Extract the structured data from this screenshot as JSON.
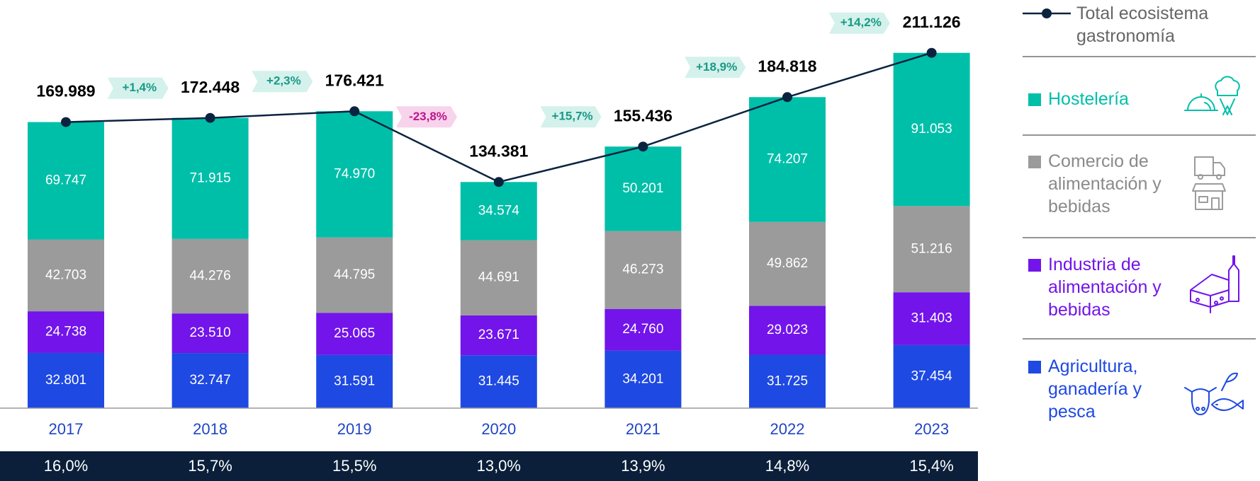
{
  "chart_data": {
    "type": "bar",
    "stacked": true,
    "categories": [
      "2017",
      "2018",
      "2019",
      "2020",
      "2021",
      "2022",
      "2023"
    ],
    "series": [
      {
        "name": "Agricultura, ganadería y pesca",
        "color": "#1e49e2",
        "values": [
          32801,
          32747,
          31591,
          31445,
          34201,
          31725,
          37454
        ],
        "value_labels": [
          "32.801",
          "32.747",
          "31.591",
          "31.445",
          "34.201",
          "31.725",
          "37.454"
        ]
      },
      {
        "name": "Industria de alimentación y bebidas",
        "color": "#7214ea",
        "values": [
          24738,
          23510,
          25065,
          23671,
          24760,
          29023,
          31403
        ],
        "value_labels": [
          "24.738",
          "23.510",
          "25.065",
          "23.671",
          "24.760",
          "29.023",
          "31.403"
        ]
      },
      {
        "name": "Comercio de alimentación y bebidas",
        "color": "#9b9b9b",
        "values": [
          42703,
          44276,
          44795,
          44691,
          46273,
          49862,
          51216
        ],
        "value_labels": [
          "42.703",
          "44.276",
          "44.795",
          "44.691",
          "46.273",
          "49.862",
          "51.216"
        ]
      },
      {
        "name": "Hostelería",
        "color": "#00bfa9",
        "values": [
          69747,
          71915,
          74970,
          34574,
          50201,
          74207,
          91053
        ],
        "value_labels": [
          "69.747",
          "71.915",
          "74.970",
          "34.574",
          "50.201",
          "74.207",
          "91.053"
        ]
      }
    ],
    "line": {
      "name": "Total ecosistema gastronomía",
      "color": "#0c2340",
      "values": [
        169989,
        172448,
        176421,
        134381,
        155436,
        184818,
        211126
      ],
      "value_labels": [
        "169.989",
        "172.448",
        "176.421",
        "134.381",
        "155.436",
        "184.818",
        "211.126"
      ]
    },
    "growth": {
      "values": [
        1.4,
        2.3,
        -23.8,
        15.7,
        18.9,
        14.2
      ],
      "value_labels": [
        "+1,4%",
        "+2,3%",
        "-23,8%",
        "+15,7%",
        "+18,9%",
        "+14,2%"
      ]
    },
    "share": {
      "values": [
        16.0,
        15.7,
        15.5,
        13.0,
        13.9,
        14.8,
        15.4
      ],
      "value_labels": [
        "16,0%",
        "15,7%",
        "15,5%",
        "13,0%",
        "13,9%",
        "14,8%",
        "15,4%"
      ]
    },
    "ylim": [
      0,
      240000
    ]
  }
}
